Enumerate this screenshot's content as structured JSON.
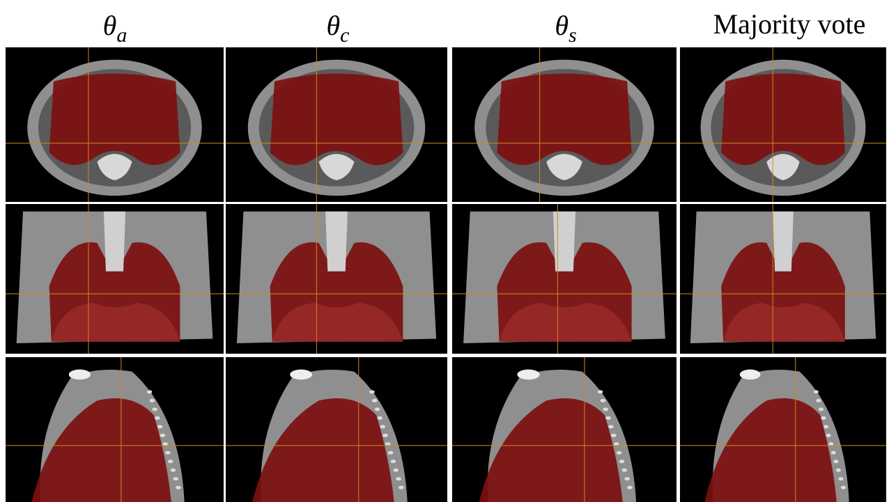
{
  "headers": [
    {
      "symbol": "θ",
      "subscript": "a"
    },
    {
      "symbol": "θ",
      "subscript": "c"
    },
    {
      "symbol": "θ",
      "subscript": "s"
    },
    {
      "text": "Majority vote"
    }
  ]
}
